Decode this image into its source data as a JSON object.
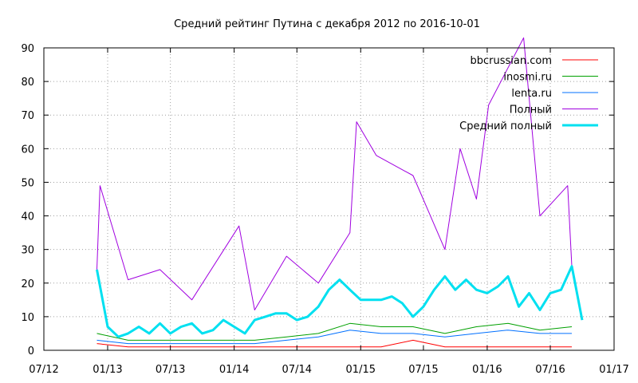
{
  "chart_data": {
    "type": "line",
    "title": "Средний рейтинг Путина с декабря 2012  по 2016-10-01",
    "xlabel": "",
    "ylabel": "",
    "xlim": [
      "2012-07-01",
      "2017-01-01"
    ],
    "ylim": [
      0,
      90
    ],
    "x_ticks": [
      "07/12",
      "01/13",
      "07/13",
      "01/14",
      "07/14",
      "01/15",
      "07/15",
      "01/16",
      "07/16",
      "01/17"
    ],
    "y_ticks": [
      0,
      10,
      20,
      30,
      40,
      50,
      60,
      70,
      80,
      90
    ],
    "grid": true,
    "legend_position": "top-right",
    "series": [
      {
        "name": "bbcrussian.com",
        "color": "#ff0000",
        "style": "thin",
        "x": [
          "2012-12-01",
          "2013-03-01",
          "2013-06-01",
          "2013-09-01",
          "2013-12-01",
          "2014-03-01",
          "2014-06-01",
          "2014-09-01",
          "2014-12-01",
          "2015-03-01",
          "2015-06-01",
          "2015-09-01",
          "2015-12-01",
          "2016-03-01",
          "2016-06-01",
          "2016-09-01"
        ],
        "values": [
          2,
          1,
          1,
          1,
          1,
          1,
          1,
          1,
          1,
          1,
          3,
          1,
          1,
          1,
          1,
          1
        ]
      },
      {
        "name": "inosmi.ru",
        "color": "#00a000",
        "style": "thin",
        "x": [
          "2012-12-01",
          "2013-03-01",
          "2013-06-01",
          "2013-09-01",
          "2013-12-01",
          "2014-03-01",
          "2014-06-01",
          "2014-09-01",
          "2014-12-01",
          "2015-03-01",
          "2015-06-01",
          "2015-09-01",
          "2015-12-01",
          "2016-03-01",
          "2016-06-01",
          "2016-09-01"
        ],
        "values": [
          5,
          3,
          3,
          3,
          3,
          3,
          4,
          5,
          8,
          7,
          7,
          5,
          7,
          8,
          6,
          7
        ]
      },
      {
        "name": "lenta.ru",
        "color": "#0070ff",
        "style": "thin",
        "x": [
          "2012-12-01",
          "2013-03-01",
          "2013-06-01",
          "2013-09-01",
          "2013-12-01",
          "2014-03-01",
          "2014-06-01",
          "2014-09-01",
          "2014-12-01",
          "2015-03-01",
          "2015-06-01",
          "2015-09-01",
          "2015-12-01",
          "2016-03-01",
          "2016-06-01",
          "2016-09-01"
        ],
        "values": [
          3,
          2,
          2,
          2,
          2,
          2,
          3,
          4,
          6,
          5,
          5,
          4,
          5,
          6,
          5,
          5
        ]
      },
      {
        "name": "Полный",
        "color": "#a000e0",
        "style": "thin",
        "x": [
          "2012-12-01",
          "2012-12-10",
          "2013-03-01",
          "2013-06-01",
          "2013-09-01",
          "2014-01-15",
          "2014-03-01",
          "2014-06-01",
          "2014-09-01",
          "2014-12-01",
          "2014-12-20",
          "2015-02-15",
          "2015-06-01",
          "2015-09-01",
          "2015-10-15",
          "2015-12-01",
          "2016-01-05",
          "2016-04-15",
          "2016-06-01",
          "2016-08-20",
          "2016-09-01"
        ],
        "values": [
          24,
          49,
          21,
          24,
          15,
          37,
          12,
          28,
          20,
          35,
          68,
          58,
          52,
          30,
          60,
          45,
          73,
          93,
          40,
          49,
          25
        ]
      },
      {
        "name": "Средний полный",
        "color": "#00e0f0",
        "style": "thick",
        "x": [
          "2012-12-01",
          "2013-01-01",
          "2013-02-01",
          "2013-03-01",
          "2013-04-01",
          "2013-05-01",
          "2013-06-01",
          "2013-07-01",
          "2013-08-01",
          "2013-09-01",
          "2013-10-01",
          "2013-11-01",
          "2013-12-01",
          "2014-01-01",
          "2014-02-01",
          "2014-03-01",
          "2014-04-01",
          "2014-05-01",
          "2014-06-01",
          "2014-07-01",
          "2014-08-01",
          "2014-09-01",
          "2014-10-01",
          "2014-11-01",
          "2014-12-01",
          "2015-01-01",
          "2015-02-01",
          "2015-03-01",
          "2015-04-01",
          "2015-05-01",
          "2015-06-01",
          "2015-07-01",
          "2015-08-01",
          "2015-09-01",
          "2015-10-01",
          "2015-11-01",
          "2015-12-01",
          "2016-01-01",
          "2016-02-01",
          "2016-03-01",
          "2016-04-01",
          "2016-05-01",
          "2016-06-01",
          "2016-07-01",
          "2016-08-01",
          "2016-09-01",
          "2016-10-01"
        ],
        "values": [
          24,
          7,
          4,
          5,
          7,
          5,
          8,
          5,
          7,
          8,
          5,
          6,
          9,
          7,
          5,
          9,
          10,
          11,
          11,
          9,
          10,
          13,
          18,
          21,
          18,
          15,
          15,
          15,
          16,
          14,
          10,
          13,
          18,
          22,
          18,
          21,
          18,
          17,
          19,
          22,
          13,
          17,
          12,
          17,
          18,
          25,
          9
        ]
      }
    ]
  }
}
